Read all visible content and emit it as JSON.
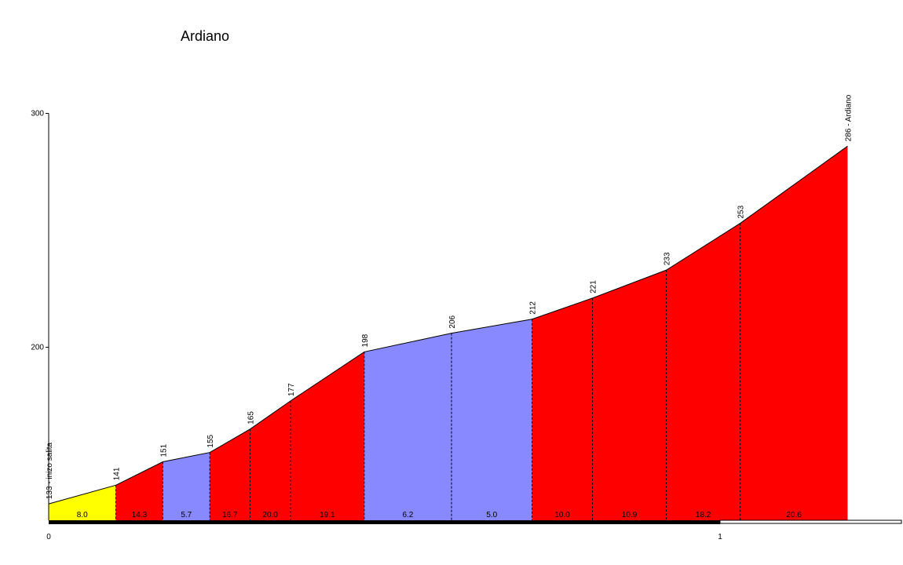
{
  "chart_data": {
    "type": "area",
    "title": "Ardiano",
    "xlabel": "",
    "ylabel": "",
    "xlim": [
      0,
      1.275
    ],
    "ylim": [
      126,
      300
    ],
    "y_ticks": [
      "200",
      "300"
    ],
    "x_ticks": [
      "0",
      "1"
    ],
    "grid": false,
    "legend": false,
    "points": [
      {
        "x": 0,
        "y": 133,
        "label": "133 - inizo salita"
      },
      {
        "x": 0.1,
        "y": 141,
        "label": "141"
      },
      {
        "x": 0.17,
        "y": 151,
        "label": "151"
      },
      {
        "x": 0.24,
        "y": 155,
        "label": "155"
      },
      {
        "x": 0.3,
        "y": 165,
        "label": "165"
      },
      {
        "x": 0.36,
        "y": 177,
        "label": "177"
      },
      {
        "x": 0.47,
        "y": 198,
        "label": "198"
      },
      {
        "x": 0.6,
        "y": 206,
        "label": "206"
      },
      {
        "x": 0.72,
        "y": 212,
        "label": "212"
      },
      {
        "x": 0.81,
        "y": 221,
        "label": "221"
      },
      {
        "x": 0.92,
        "y": 233,
        "label": "233"
      },
      {
        "x": 1.03,
        "y": 253,
        "label": "253"
      },
      {
        "x": 1.19,
        "y": 286,
        "label": "286 - Ardiano"
      }
    ],
    "segments": [
      {
        "gradient": "8.0",
        "color": "#ffff00"
      },
      {
        "gradient": "14.3",
        "color": "#ff0000"
      },
      {
        "gradient": "5.7",
        "color": "#8888ff"
      },
      {
        "gradient": "16.7",
        "color": "#ff0000"
      },
      {
        "gradient": "20.0",
        "color": "#ff0000"
      },
      {
        "gradient": "19.1",
        "color": "#ff0000"
      },
      {
        "gradient": "6.2",
        "color": "#8888ff"
      },
      {
        "gradient": "5.0",
        "color": "#8888ff"
      },
      {
        "gradient": "10.0",
        "color": "#ff0000"
      },
      {
        "gradient": "10.9",
        "color": "#ff0000"
      },
      {
        "gradient": "18.2",
        "color": "#ff0000"
      },
      {
        "gradient": "20.6",
        "color": "#ff0000"
      }
    ]
  }
}
